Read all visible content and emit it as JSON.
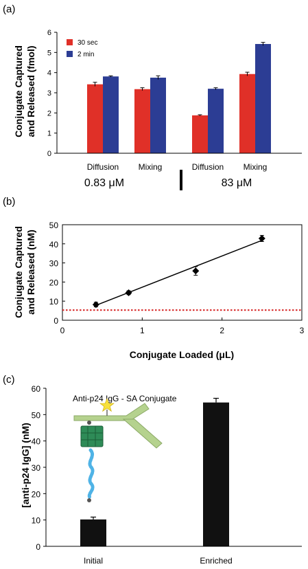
{
  "panels": {
    "a": "(a)",
    "b": "(b)",
    "c": "(c)"
  },
  "chart_data": [
    {
      "type": "bar",
      "ylabel_lines": [
        "Conjugate Captured",
        "and Released (fmol)"
      ],
      "ylim": [
        0,
        6
      ],
      "yticks": [
        0,
        1,
        2,
        3,
        4,
        5,
        6
      ],
      "categories": [
        "Diffusion",
        "Mixing",
        "Diffusion",
        "Mixing"
      ],
      "groups": [
        "0.83 μM",
        "83 μM"
      ],
      "series": [
        {
          "name": "30 sec",
          "color": "#e03028",
          "values": [
            3.42,
            3.18,
            1.88,
            3.93
          ],
          "errors": [
            0.1,
            0.07,
            0.03,
            0.09
          ]
        },
        {
          "name": "2 min",
          "color": "#2c3d94",
          "values": [
            3.81,
            3.75,
            3.2,
            5.42
          ],
          "errors": [
            0.03,
            0.09,
            0.05,
            0.08
          ]
        }
      ],
      "legend": "top-left"
    },
    {
      "type": "scatter",
      "ylabel_lines": [
        "Conjugate Captured",
        "and Released (nM)"
      ],
      "xlabel": "Conjugate Loaded (μL)",
      "xlim": [
        0,
        3
      ],
      "ylim": [
        0,
        50
      ],
      "xticks": [
        0,
        1,
        2,
        3
      ],
      "yticks": [
        0,
        10,
        20,
        30,
        40,
        50
      ],
      "points": [
        {
          "x": 0.42,
          "y": 8.2,
          "yerr": 1.2
        },
        {
          "x": 0.83,
          "y": 14.4,
          "yerr": 1.0
        },
        {
          "x": 1.67,
          "y": 25.8,
          "yerr": 2.3
        },
        {
          "x": 2.5,
          "y": 42.8,
          "yerr": 1.6
        }
      ],
      "fit_line": {
        "x": [
          0.42,
          2.5
        ],
        "y": [
          7.8,
          41.8
        ]
      },
      "threshold": {
        "y": 5.3,
        "color": "#d62020"
      }
    },
    {
      "type": "bar",
      "ylabel": "[anti-p24 IgG] (nM)",
      "ylim": [
        0,
        60
      ],
      "yticks": [
        0,
        10,
        20,
        30,
        40,
        50,
        60
      ],
      "categories": [
        "Initial",
        "Enriched"
      ],
      "values": [
        10.2,
        54.6
      ],
      "errors": [
        0.9,
        1.6
      ],
      "color": "#111111",
      "annotation": "Anti-p24 IgG - SA Conjugate"
    }
  ]
}
